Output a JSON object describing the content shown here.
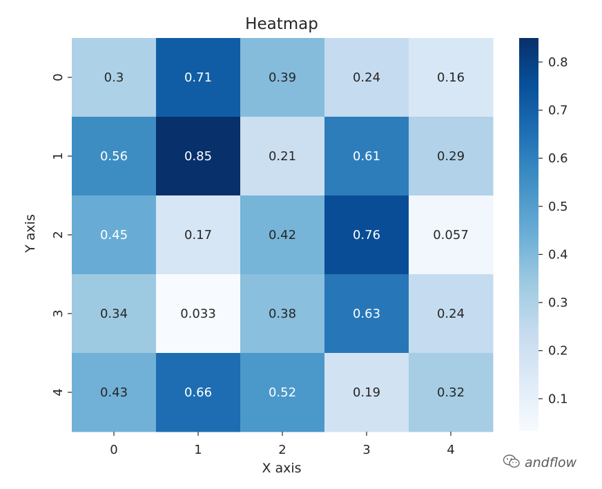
{
  "chart_data": {
    "type": "heatmap",
    "title": "Heatmap",
    "xlabel": "X axis",
    "ylabel": "Y axis",
    "x_categories": [
      "0",
      "1",
      "2",
      "3",
      "4"
    ],
    "y_categories": [
      "0",
      "1",
      "2",
      "3",
      "4"
    ],
    "values": [
      [
        0.3,
        0.71,
        0.39,
        0.24,
        0.16
      ],
      [
        0.56,
        0.85,
        0.21,
        0.61,
        0.29
      ],
      [
        0.45,
        0.17,
        0.42,
        0.76,
        0.057
      ],
      [
        0.34,
        0.033,
        0.38,
        0.63,
        0.24
      ],
      [
        0.43,
        0.66,
        0.52,
        0.19,
        0.32
      ]
    ],
    "cell_labels": [
      [
        "0.3",
        "0.71",
        "0.39",
        "0.24",
        "0.16"
      ],
      [
        "0.56",
        "0.85",
        "0.21",
        "0.61",
        "0.29"
      ],
      [
        "0.45",
        "0.17",
        "0.42",
        "0.76",
        "0.057"
      ],
      [
        "0.34",
        "0.033",
        "0.38",
        "0.63",
        "0.24"
      ],
      [
        "0.43",
        "0.66",
        "0.52",
        "0.19",
        "0.32"
      ]
    ],
    "colormap": "Blues",
    "colorbar": {
      "range": [
        0.033,
        0.85
      ],
      "ticks": [
        0.1,
        0.2,
        0.3,
        0.4,
        0.5,
        0.6,
        0.7,
        0.8
      ],
      "tick_labels": [
        "0.1",
        "0.2",
        "0.3",
        "0.4",
        "0.5",
        "0.6",
        "0.7",
        "0.8"
      ]
    },
    "grid": false
  },
  "watermark": {
    "text": "andflow",
    "icon": "wechat-icon"
  },
  "colors": {
    "text": "#262626",
    "cell_text_dark": "#262626",
    "cell_text_light": "#ffffff",
    "blues_ramp": [
      "#f7fbff",
      "#deebf7",
      "#c6dbef",
      "#9ecae1",
      "#6baed6",
      "#4292c6",
      "#2171b5",
      "#08519c",
      "#08306b"
    ]
  }
}
